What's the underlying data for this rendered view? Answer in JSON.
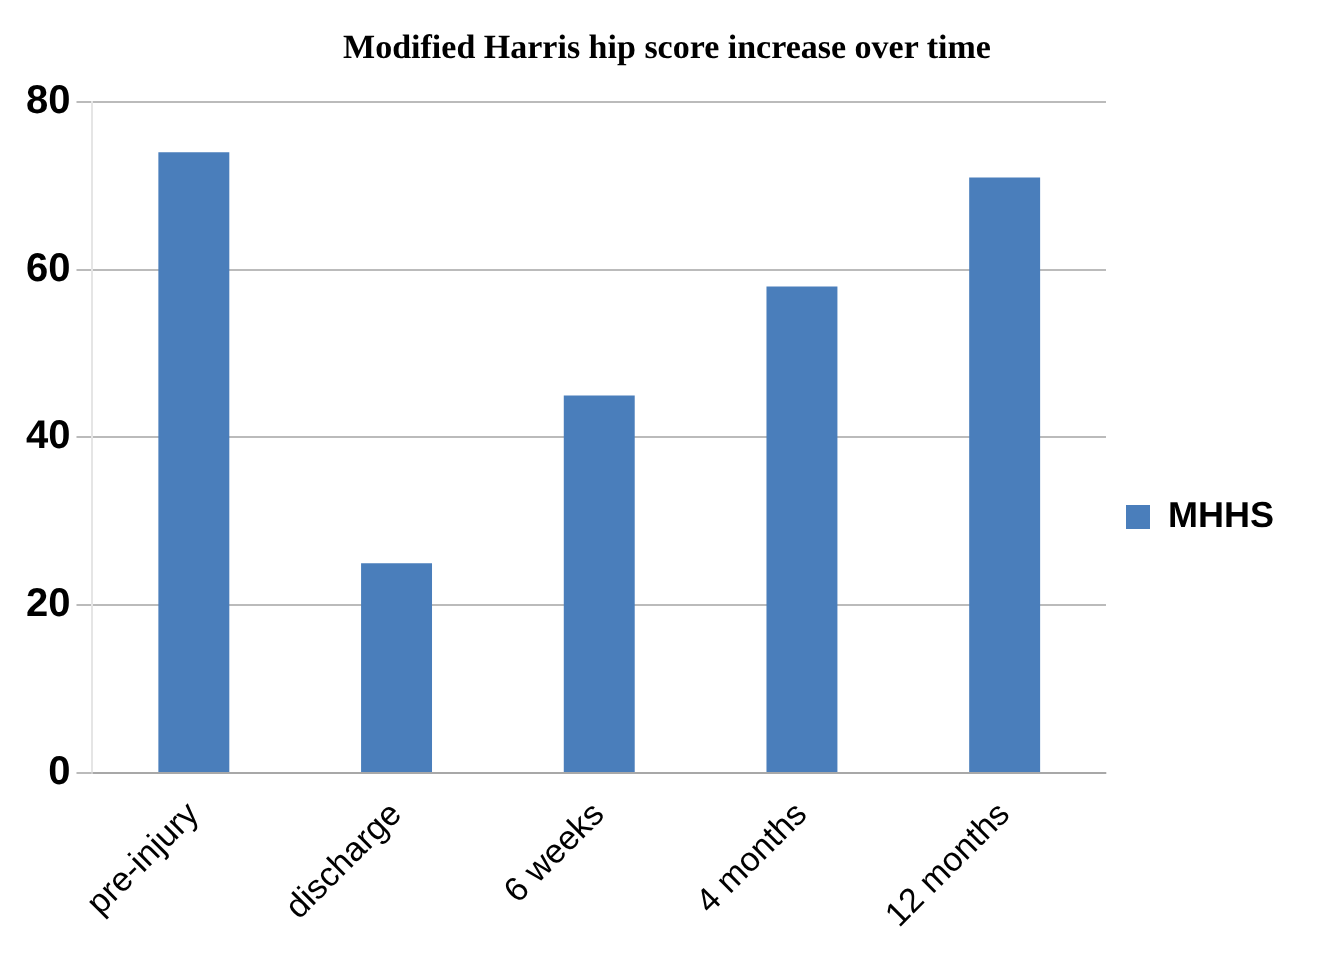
{
  "chart_data": {
    "type": "bar",
    "title": "Modified Harris hip score increase over time",
    "categories": [
      "pre-injury",
      "discharge",
      "6 weeks",
      "4 months",
      "12 months"
    ],
    "series": [
      {
        "name": "MHHS",
        "color": "#4a7ebb",
        "values": [
          74,
          25,
          45,
          58,
          71
        ]
      }
    ],
    "ylim": [
      0,
      80
    ],
    "yticks": [
      0,
      20,
      40,
      60,
      80
    ],
    "grid": "y",
    "legend": "right"
  }
}
